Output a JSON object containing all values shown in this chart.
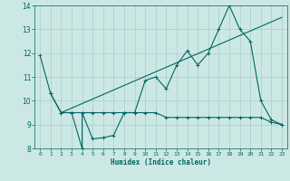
{
  "title": "",
  "xlabel": "Humidex (Indice chaleur)",
  "ylabel": "",
  "bg_color": "#cce8e4",
  "line_color": "#006666",
  "grid_color": "#aacccc",
  "xlim": [
    -0.5,
    23.5
  ],
  "ylim": [
    8,
    14
  ],
  "yticks": [
    8,
    9,
    10,
    11,
    12,
    13,
    14
  ],
  "xticks": [
    0,
    1,
    2,
    3,
    4,
    5,
    6,
    7,
    8,
    9,
    10,
    11,
    12,
    13,
    14,
    15,
    16,
    17,
    18,
    19,
    20,
    21,
    22,
    23
  ],
  "line1_x": [
    0,
    1,
    2,
    3,
    4,
    4,
    5,
    6,
    7,
    8,
    9,
    9,
    10,
    11,
    12,
    13,
    14,
    15,
    16,
    17,
    18,
    19,
    20,
    21,
    22,
    23
  ],
  "line1_y": [
    11.9,
    10.3,
    9.5,
    9.5,
    8.0,
    9.5,
    8.4,
    8.45,
    8.55,
    9.5,
    9.5,
    9.5,
    10.85,
    11.0,
    10.5,
    11.5,
    12.1,
    11.5,
    12.0,
    13.0,
    14.0,
    13.0,
    12.5,
    10.0,
    9.2,
    9.0
  ],
  "line2_x": [
    1,
    2,
    3,
    4,
    5,
    6,
    7,
    8,
    9,
    10,
    11,
    12,
    13,
    14,
    15,
    16,
    17,
    18,
    19,
    20,
    21,
    22,
    23
  ],
  "line2_y": [
    10.3,
    9.5,
    9.5,
    9.5,
    9.5,
    9.5,
    9.5,
    9.5,
    9.5,
    9.5,
    9.5,
    9.3,
    9.3,
    9.3,
    9.3,
    9.3,
    9.3,
    9.3,
    9.3,
    9.3,
    9.3,
    9.1,
    9.0
  ],
  "trend_x": [
    2,
    23
  ],
  "trend_y": [
    9.5,
    13.5
  ],
  "marker_x1": [
    0,
    1,
    2,
    3,
    4,
    5,
    6,
    7,
    8,
    9,
    10,
    11,
    12,
    13,
    14,
    15,
    16,
    17,
    18,
    19,
    20,
    21,
    22,
    23
  ],
  "marker_y1": [
    11.9,
    10.3,
    9.5,
    9.5,
    8.0,
    8.4,
    8.45,
    8.55,
    9.5,
    9.5,
    10.85,
    11.0,
    10.5,
    11.5,
    12.1,
    11.5,
    12.0,
    13.0,
    14.0,
    13.0,
    12.5,
    10.0,
    9.2,
    9.0
  ],
  "marker_x2": [
    1,
    2,
    3,
    4,
    5,
    6,
    7,
    8,
    9,
    10,
    11,
    12,
    13,
    14,
    15,
    16,
    17,
    18,
    19,
    20,
    21,
    22,
    23
  ],
  "marker_y2": [
    10.3,
    9.5,
    9.5,
    9.5,
    9.5,
    9.5,
    9.5,
    9.5,
    9.5,
    9.5,
    9.5,
    9.3,
    9.3,
    9.3,
    9.3,
    9.3,
    9.3,
    9.3,
    9.3,
    9.3,
    9.3,
    9.1,
    9.0
  ]
}
